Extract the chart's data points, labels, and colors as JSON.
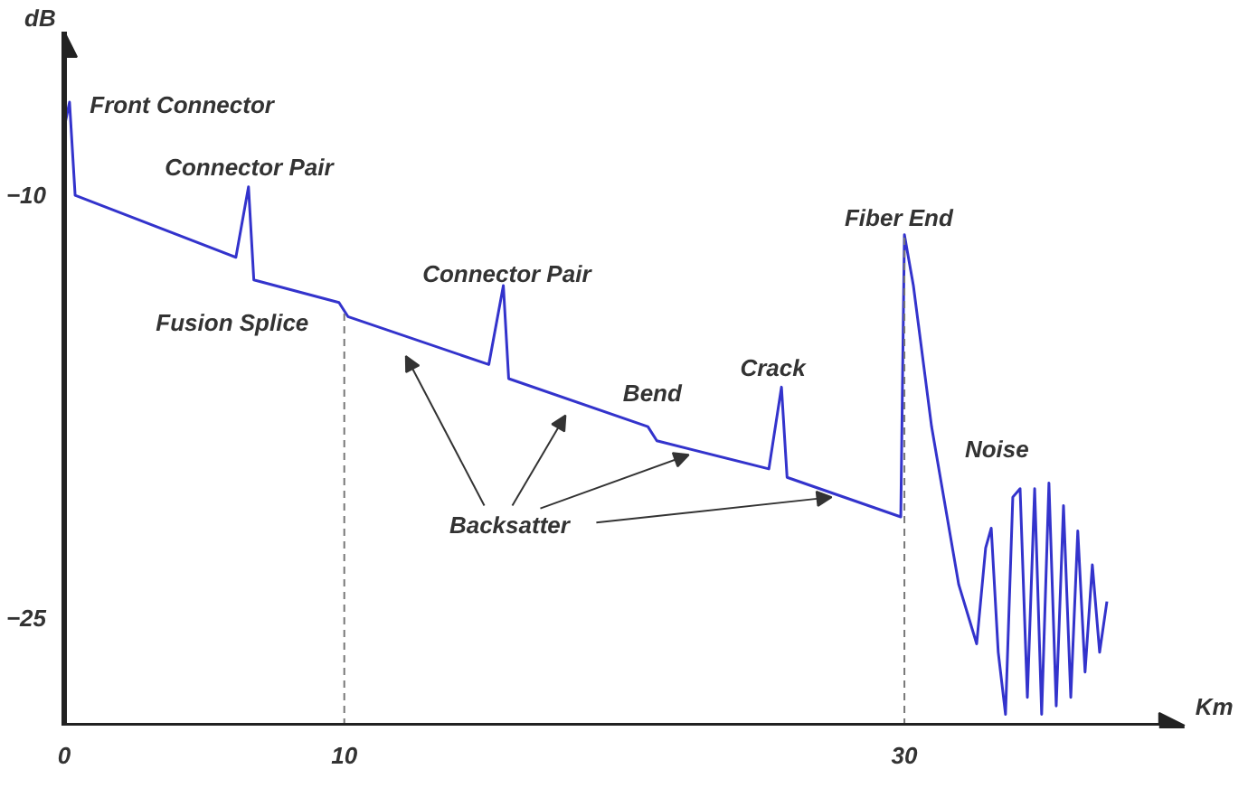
{
  "chart_data": {
    "type": "line",
    "xlabel": "Km",
    "ylabel": "dB",
    "xlim": [
      0,
      40
    ],
    "ylim": [
      -28.8,
      -4.2
    ],
    "xticks": [
      0,
      10,
      30
    ],
    "yticks": [
      -10,
      -25
    ],
    "grid": false,
    "marker": "none",
    "line_style": "solid",
    "series": [
      {
        "color": "#3333cc",
        "x": [
          0,
          0.19,
          0.39,
          6.13,
          6.58,
          6.77,
          9.81,
          10.13,
          15.16,
          15.68,
          15.87,
          20.84,
          21.16,
          25.16,
          25.61,
          25.81,
          29.87,
          30.0,
          30.32,
          30.97,
          31.94,
          32.58,
          32.9,
          33.1,
          33.35,
          33.61,
          33.87,
          34.13,
          34.39,
          34.65,
          34.9,
          35.16,
          35.42,
          35.68,
          35.94,
          36.19,
          36.45,
          36.71,
          36.97,
          37.23
        ],
        "values": [
          -7.6,
          -6.7,
          -10.0,
          -12.2,
          -9.7,
          -13.0,
          -13.8,
          -14.3,
          -16.0,
          -13.2,
          -16.5,
          -18.2,
          -18.7,
          -19.7,
          -16.8,
          -20.0,
          -21.4,
          -11.4,
          -13.2,
          -18.2,
          -23.8,
          -25.9,
          -22.5,
          -21.8,
          -26.2,
          -28.4,
          -20.7,
          -20.4,
          -27.8,
          -20.4,
          -28.4,
          -20.2,
          -28.1,
          -21.0,
          -27.8,
          -21.9,
          -26.9,
          -23.1,
          -26.2,
          -24.4
        ]
      }
    ],
    "ref_lines": [
      {
        "axis": "x",
        "value": 10,
        "color": "#777777",
        "line_style": "dashed"
      },
      {
        "axis": "x",
        "value": 30,
        "color": "#777777",
        "line_style": "dashed"
      }
    ],
    "annotations": [
      "Front Connector",
      "Connector Pair",
      "Fusion Splice",
      "Connector Pair",
      "Bend",
      "Crack",
      "Fiber End",
      "Noise",
      {
        "text": "Backsatter",
        "x": 27.4,
        "y": -20.7
      }
    ]
  }
}
